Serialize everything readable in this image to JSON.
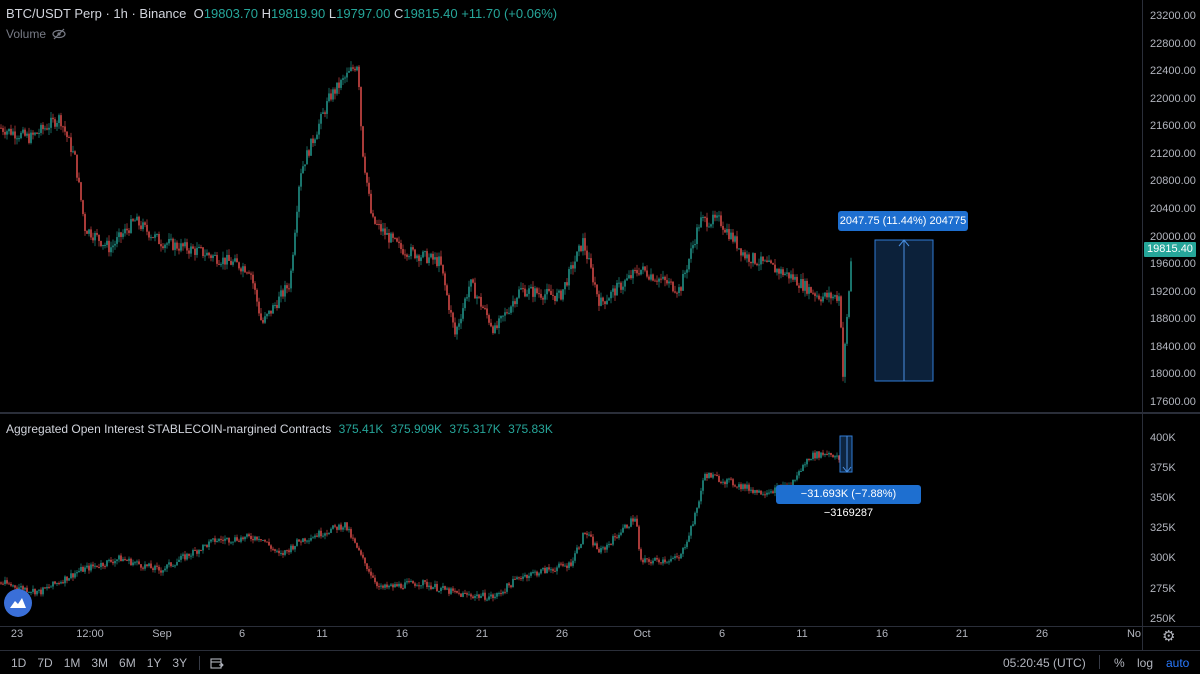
{
  "symbol": {
    "title": "BTC/USDT Perp · 1h · Binance",
    "open_label": "O",
    "open": "19803.70",
    "high_label": "H",
    "high": "19819.90",
    "low_label": "L",
    "low": "19797.00",
    "close_label": "C",
    "close": "19815.40",
    "change": "+11.70 (+0.06%)",
    "last_price": "19815.40"
  },
  "volume": {
    "label": "Volume",
    "icon": "eye-crossed-icon"
  },
  "oi_indicator": {
    "title": "Aggregated Open Interest STABLECOIN-margined Contracts",
    "values": [
      "375.41K",
      "375.909K",
      "375.317K",
      "375.83K"
    ]
  },
  "price_axis": [
    "23200.00",
    "22800.00",
    "22400.00",
    "22000.00",
    "21600.00",
    "21200.00",
    "20800.00",
    "20400.00",
    "20000.00",
    "19600.00",
    "19200.00",
    "18800.00",
    "18400.00",
    "18000.00",
    "17600.00"
  ],
  "oi_axis": [
    "400K",
    "375K",
    "350K",
    "325K",
    "300K",
    "275K",
    "250K"
  ],
  "time_axis": [
    "23",
    "12:00",
    "Sep",
    "6",
    "11",
    "16",
    "21",
    "26",
    "Oct",
    "6",
    "11",
    "16",
    "21",
    "26",
    "No"
  ],
  "measure_price": "2047.75 (11.44%) 204775",
  "measure_oi": "−31.693K (−7.88%) −3169287",
  "ranges": [
    "1D",
    "7D",
    "1M",
    "3M",
    "6M",
    "1Y",
    "3Y"
  ],
  "clock": "05:20:45 (UTC)",
  "right_controls": {
    "percent": "%",
    "log": "log",
    "auto": "auto"
  },
  "colors": {
    "up": "#26a69a",
    "down": "#ef5350",
    "measure": "#1e6fd0",
    "background": "#000000"
  }
}
